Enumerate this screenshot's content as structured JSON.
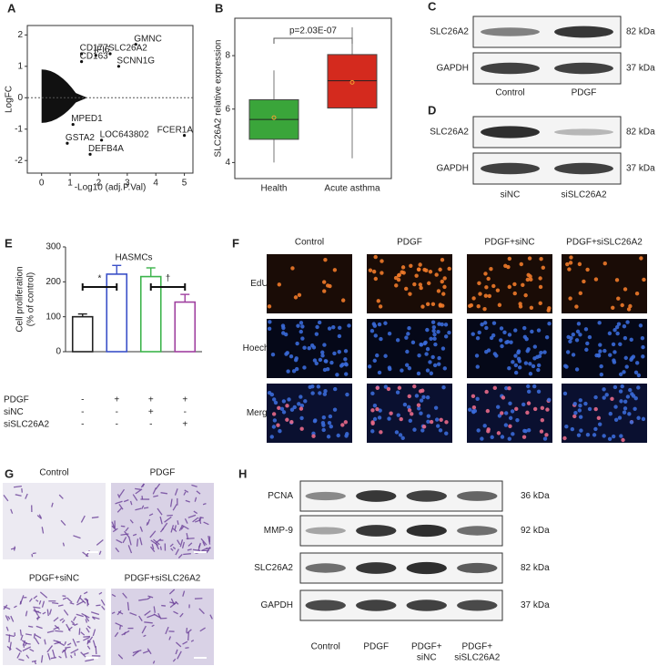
{
  "panel_labels": [
    "A",
    "B",
    "C",
    "D",
    "E",
    "F",
    "G",
    "H"
  ],
  "chart_data": [
    {
      "type": "scatter",
      "xlabel": "-Log10 (adj.P.Val)",
      "ylabel": "LogFC",
      "xlim": [
        -0.5,
        5.3
      ],
      "ylim": [
        -2.4,
        2.3
      ],
      "xticks": [
        0,
        1,
        2,
        3,
        4,
        5
      ],
      "yticks": [
        -2,
        -1,
        0,
        1,
        2
      ],
      "hline": 0,
      "series": [
        {
          "color": "#e2261c",
          "labels": [
            "GMNC",
            "CD177",
            "IFI6",
            "SLC26A2",
            "CD163",
            "SCNN1G"
          ],
          "x": [
            3.3,
            1.4,
            1.9,
            2.4,
            1.4,
            2.7
          ],
          "values": [
            1.7,
            1.4,
            1.35,
            1.4,
            1.15,
            1.0
          ]
        },
        {
          "color": "#3aa832",
          "labels": [
            "MPED1",
            "LOC643802",
            "FCER1A",
            "GSTA2",
            "DEFB4A"
          ],
          "x": [
            1.1,
            2.1,
            5.0,
            0.9,
            1.7
          ],
          "values": [
            -0.85,
            -1.35,
            -1.2,
            -1.45,
            -1.8
          ]
        }
      ]
    },
    {
      "type": "box",
      "ylabel": "SLC26A2 relative expression",
      "categories": [
        "Health",
        "Acute asthma"
      ],
      "ylim": [
        3.4,
        9.4
      ],
      "yticks": [
        4,
        6,
        8
      ],
      "annotation": "p=2.03E-07",
      "boxes": [
        {
          "color": "#3aa53a",
          "min": 4.0,
          "q1": 4.87,
          "median": 5.61,
          "q3": 6.35,
          "max": 7.45,
          "mean": 5.68
        },
        {
          "color": "#d42a1e",
          "min": 4.16,
          "q1": 6.04,
          "median": 7.06,
          "q3": 8.04,
          "max": 9.06,
          "mean": 7.0
        }
      ]
    },
    {
      "type": "bar",
      "title": "HASMCs",
      "ylabel": [
        "Cell proliferation",
        "(% of control)"
      ],
      "categories": [
        null,
        null,
        null,
        null
      ],
      "values": [
        100,
        222,
        215,
        142
      ],
      "errors": [
        8,
        25,
        25,
        22
      ],
      "colors": [
        "#222222",
        "#3a50c8",
        "#3cb44b",
        "#a040a0"
      ],
      "ylim": [
        0,
        300
      ],
      "yticks": [
        0,
        100,
        200,
        300
      ],
      "annotations": [
        "*",
        "†"
      ],
      "conditions": [
        {
          "name": "PDGF",
          "signs": [
            "-",
            "+",
            "+",
            "+"
          ]
        },
        {
          "name": "siNC",
          "signs": [
            "-",
            "-",
            "+",
            "-"
          ]
        },
        {
          "name": "siSLC26A2",
          "signs": [
            "-",
            "-",
            "-",
            "+"
          ]
        }
      ]
    }
  ],
  "blot_c": {
    "rows": [
      {
        "protein": "SLC26A2",
        "size": "82 kDa"
      },
      {
        "protein": "GAPDH",
        "size": "37 kDa"
      }
    ],
    "lanes": [
      "Control",
      "PDGF"
    ]
  },
  "blot_d": {
    "rows": [
      {
        "protein": "SLC26A2",
        "size": "82 kDa"
      },
      {
        "protein": "GAPDH",
        "size": "37 kDa"
      }
    ],
    "lanes": [
      "siNC",
      "siSLC26A2"
    ]
  },
  "microscopy": {
    "columns": [
      "Control",
      "PDGF",
      "PDGF+siNC",
      "PDGF+siSLC26A2"
    ],
    "rows": [
      "EdU",
      "Hoechst",
      "Merge"
    ]
  },
  "transwell": {
    "labels": [
      "Control",
      "PDGF",
      "PDGF+siNC",
      "PDGF+siSLC26A2"
    ]
  },
  "blot_h": {
    "rows": [
      {
        "protein": "PCNA",
        "size": "36 kDa"
      },
      {
        "protein": "MMP-9",
        "size": "92 kDa"
      },
      {
        "protein": "SLC26A2",
        "size": "82 kDa"
      },
      {
        "protein": "GAPDH",
        "size": "37 kDa"
      }
    ],
    "lanes": [
      [
        "Control"
      ],
      [
        "PDGF"
      ],
      [
        "PDGF+",
        "siNC"
      ],
      [
        "PDGF+",
        "siSLC26A2"
      ]
    ]
  }
}
